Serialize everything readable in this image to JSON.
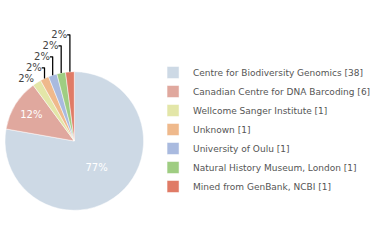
{
  "chart_data": {
    "type": "pie",
    "categories": [
      "Centre for Biodiversity Genomics [38]",
      "Canadian Centre for DNA Barcoding [6]",
      "Wellcome Sanger Institute [1]",
      "Unknown [1]",
      "University of Oulu [1]",
      "Natural History Museum, London [1]",
      "Mined from GenBank, NCBI [1]"
    ],
    "values": [
      77,
      12,
      2,
      2,
      2,
      2,
      2
    ],
    "value_labels": [
      "77%",
      "12%",
      "2%",
      "2%",
      "2%",
      "2%",
      "2%"
    ],
    "colors": [
      "#cdd9e5",
      "#e0a89e",
      "#e3e6a8",
      "#efb98c",
      "#a9badf",
      "#9fcd82",
      "#e07b66"
    ],
    "data_labels": true,
    "legend": "right"
  }
}
